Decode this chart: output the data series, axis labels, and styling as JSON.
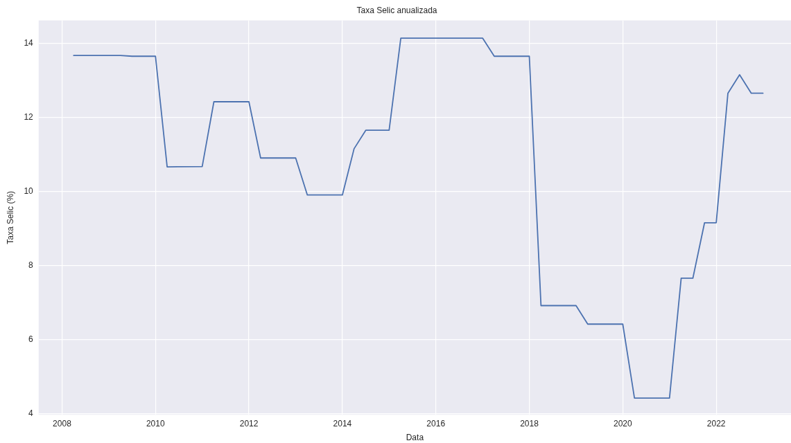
{
  "chart_data": {
    "type": "line",
    "title": "Taxa Selic anualizada",
    "xlabel": "Data",
    "ylabel": "Taxa Selic (%)",
    "x": [
      2008.25,
      2009.25,
      2009.5,
      2010,
      2010.25,
      2011,
      2011.25,
      2012,
      2012.25,
      2013,
      2013.25,
      2014,
      2014.25,
      2014.5,
      2015,
      2015.25,
      2017,
      2017.25,
      2018,
      2018.25,
      2019,
      2019.25,
      2020,
      2020.25,
      2021,
      2021.25,
      2021.5,
      2021.75,
      2022,
      2022.25,
      2022.5,
      2022.75,
      2023
    ],
    "series": [
      {
        "color": "#4c72b0",
        "values": [
          13.68,
          13.68,
          13.66,
          13.66,
          10.67,
          10.68,
          12.43,
          12.43,
          10.91,
          10.91,
          9.91,
          9.91,
          11.16,
          11.66,
          11.66,
          14.15,
          14.15,
          13.66,
          13.66,
          6.92,
          6.92,
          6.42,
          6.42,
          4.42,
          4.42,
          7.66,
          7.66,
          9.16,
          9.16,
          12.66,
          13.16,
          12.66,
          12.66
        ]
      }
    ],
    "xlim": [
      2007.5,
      2023.6
    ],
    "xticks": [
      2008,
      2010,
      2012,
      2014,
      2016,
      2018,
      2020,
      2022
    ],
    "ylim": [
      3.97,
      14.63
    ],
    "yticks": [
      4,
      6,
      8,
      10,
      12,
      14
    ],
    "grid": true,
    "legend": false,
    "marker": "none",
    "line_style": "solid"
  }
}
